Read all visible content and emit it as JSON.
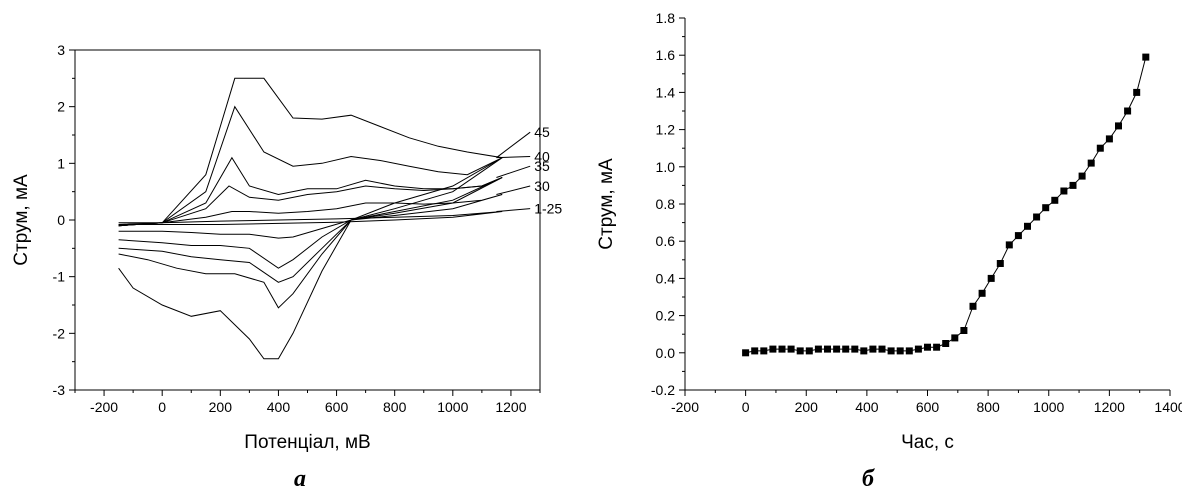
{
  "chart_data": [
    {
      "type": "line",
      "caption": "а",
      "xlabel": "Потенціал, мВ",
      "ylabel": "Струм, мА",
      "xlim": [
        -300,
        1300
      ],
      "ylim": [
        -3,
        3
      ],
      "xticks": [
        -200,
        0,
        200,
        400,
        600,
        800,
        1000,
        1200
      ],
      "yticks": [
        -3,
        -2,
        -1,
        0,
        1,
        2,
        3
      ],
      "grid": false,
      "legend": "none",
      "series": [
        {
          "name": "1-25",
          "forward": [
            [
              -150,
              -0.05
            ],
            [
              0,
              -0.05
            ],
            [
              200,
              -0.02
            ],
            [
              400,
              0.0
            ],
            [
              600,
              0.02
            ],
            [
              800,
              0.05
            ],
            [
              1000,
              0.08
            ],
            [
              1170,
              0.15
            ]
          ],
          "reverse": [
            [
              1170,
              0.15
            ],
            [
              1000,
              0.05
            ],
            [
              800,
              0.0
            ],
            [
              600,
              -0.04
            ],
            [
              400,
              -0.06
            ],
            [
              200,
              -0.08
            ],
            [
              0,
              -0.08
            ],
            [
              -150,
              -0.08
            ]
          ]
        },
        {
          "name": "30",
          "forward": [
            [
              -150,
              -0.08
            ],
            [
              0,
              -0.05
            ],
            [
              150,
              0.05
            ],
            [
              240,
              0.15
            ],
            [
              300,
              0.15
            ],
            [
              400,
              0.12
            ],
            [
              500,
              0.15
            ],
            [
              600,
              0.2
            ],
            [
              700,
              0.3
            ],
            [
              800,
              0.3
            ],
            [
              900,
              0.28
            ],
            [
              1000,
              0.3
            ],
            [
              1100,
              0.35
            ],
            [
              1170,
              0.45
            ]
          ],
          "reverse": [
            [
              1170,
              0.45
            ],
            [
              1000,
              0.2
            ],
            [
              800,
              0.08
            ],
            [
              650,
              0.0
            ],
            [
              550,
              -0.15
            ],
            [
              450,
              -0.3
            ],
            [
              400,
              -0.32
            ],
            [
              300,
              -0.25
            ],
            [
              200,
              -0.25
            ],
            [
              100,
              -0.22
            ],
            [
              0,
              -0.2
            ],
            [
              -150,
              -0.2
            ]
          ]
        },
        {
          "name": "35",
          "forward": [
            [
              -150,
              -0.1
            ],
            [
              0,
              -0.05
            ],
            [
              150,
              0.2
            ],
            [
              230,
              0.6
            ],
            [
              300,
              0.4
            ],
            [
              400,
              0.35
            ],
            [
              500,
              0.45
            ],
            [
              600,
              0.5
            ],
            [
              700,
              0.6
            ],
            [
              800,
              0.55
            ],
            [
              900,
              0.52
            ],
            [
              1000,
              0.55
            ],
            [
              1100,
              0.6
            ],
            [
              1170,
              0.75
            ]
          ],
          "reverse": [
            [
              1170,
              0.75
            ],
            [
              1000,
              0.3
            ],
            [
              800,
              0.12
            ],
            [
              650,
              0.0
            ],
            [
              550,
              -0.3
            ],
            [
              450,
              -0.7
            ],
            [
              400,
              -0.85
            ],
            [
              300,
              -0.5
            ],
            [
              200,
              -0.45
            ],
            [
              100,
              -0.45
            ],
            [
              0,
              -0.4
            ],
            [
              -150,
              -0.35
            ]
          ]
        },
        {
          "name": "35",
          "forward": [
            [
              -150,
              -0.1
            ],
            [
              0,
              -0.05
            ],
            [
              150,
              0.3
            ],
            [
              240,
              1.1
            ],
            [
              300,
              0.6
            ],
            [
              400,
              0.45
            ],
            [
              500,
              0.55
            ],
            [
              600,
              0.55
            ],
            [
              700,
              0.7
            ],
            [
              800,
              0.6
            ],
            [
              900,
              0.55
            ],
            [
              1000,
              0.55
            ],
            [
              1100,
              0.6
            ],
            [
              1170,
              0.75
            ]
          ],
          "reverse": [
            [
              1170,
              0.75
            ],
            [
              1000,
              0.35
            ],
            [
              800,
              0.15
            ],
            [
              650,
              0.0
            ],
            [
              550,
              -0.5
            ],
            [
              450,
              -1.0
            ],
            [
              400,
              -1.1
            ],
            [
              300,
              -0.75
            ],
            [
              200,
              -0.7
            ],
            [
              100,
              -0.65
            ],
            [
              0,
              -0.55
            ],
            [
              -150,
              -0.5
            ]
          ]
        },
        {
          "name": "40",
          "forward": [
            [
              -150,
              -0.1
            ],
            [
              0,
              -0.05
            ],
            [
              150,
              0.5
            ],
            [
              250,
              2.0
            ],
            [
              350,
              1.2
            ],
            [
              450,
              0.95
            ],
            [
              550,
              1.0
            ],
            [
              650,
              1.12
            ],
            [
              750,
              1.05
            ],
            [
              850,
              0.95
            ],
            [
              950,
              0.85
            ],
            [
              1050,
              0.8
            ],
            [
              1170,
              1.1
            ]
          ],
          "reverse": [
            [
              1170,
              1.1
            ],
            [
              1000,
              0.5
            ],
            [
              800,
              0.2
            ],
            [
              650,
              0.0
            ],
            [
              550,
              -0.6
            ],
            [
              450,
              -1.3
            ],
            [
              400,
              -1.55
            ],
            [
              350,
              -1.1
            ],
            [
              250,
              -0.95
            ],
            [
              150,
              -0.95
            ],
            [
              50,
              -0.85
            ],
            [
              -50,
              -0.7
            ],
            [
              -150,
              -0.6
            ]
          ]
        },
        {
          "name": "45",
          "forward": [
            [
              -150,
              -0.1
            ],
            [
              0,
              -0.05
            ],
            [
              150,
              0.8
            ],
            [
              250,
              2.5
            ],
            [
              350,
              2.5
            ],
            [
              450,
              1.8
            ],
            [
              550,
              1.78
            ],
            [
              650,
              1.85
            ],
            [
              750,
              1.65
            ],
            [
              850,
              1.45
            ],
            [
              950,
              1.3
            ],
            [
              1050,
              1.2
            ],
            [
              1170,
              1.1
            ]
          ],
          "reverse": [
            [
              1170,
              1.1
            ],
            [
              1000,
              0.6
            ],
            [
              800,
              0.3
            ],
            [
              650,
              0.0
            ],
            [
              550,
              -0.9
            ],
            [
              450,
              -2.0
            ],
            [
              400,
              -2.45
            ],
            [
              350,
              -2.45
            ],
            [
              300,
              -2.1
            ],
            [
              200,
              -1.6
            ],
            [
              100,
              -1.7
            ],
            [
              0,
              -1.5
            ],
            [
              -100,
              -1.2
            ],
            [
              -150,
              -0.85
            ]
          ]
        }
      ],
      "annotations": [
        "45",
        "40",
        "35",
        "30",
        "1-25"
      ]
    },
    {
      "type": "line",
      "caption": "б",
      "xlabel": "Час, с",
      "ylabel": "Струм, мА",
      "xlim": [
        -200,
        1400
      ],
      "ylim": [
        -0.2,
        1.8
      ],
      "xticks": [
        -200,
        0,
        200,
        400,
        600,
        800,
        1000,
        1200,
        1400
      ],
      "yticks": [
        "-0.2",
        "0.0",
        "0.2",
        "0.4",
        "0.6",
        "0.8",
        "1.0",
        "1.2",
        "1.4",
        "1.6",
        "1.8"
      ],
      "grid": false,
      "legend": "none",
      "x": [
        0,
        30,
        60,
        90,
        120,
        150,
        180,
        210,
        240,
        270,
        300,
        330,
        360,
        390,
        420,
        450,
        480,
        510,
        540,
        570,
        600,
        630,
        660,
        690,
        720,
        750,
        780,
        810,
        840,
        870,
        900,
        930,
        960,
        990,
        1020,
        1050,
        1080,
        1110,
        1140,
        1170,
        1200,
        1230,
        1260,
        1290,
        1320
      ],
      "y": [
        0.0,
        0.01,
        0.01,
        0.02,
        0.02,
        0.02,
        0.01,
        0.01,
        0.02,
        0.02,
        0.02,
        0.02,
        0.02,
        0.01,
        0.02,
        0.02,
        0.01,
        0.01,
        0.01,
        0.02,
        0.03,
        0.03,
        0.05,
        0.08,
        0.12,
        0.25,
        0.32,
        0.4,
        0.48,
        0.58,
        0.63,
        0.68,
        0.73,
        0.78,
        0.82,
        0.87,
        0.9,
        0.95,
        1.02,
        1.1,
        1.15,
        1.22,
        1.3,
        1.4,
        1.59
      ]
    }
  ]
}
